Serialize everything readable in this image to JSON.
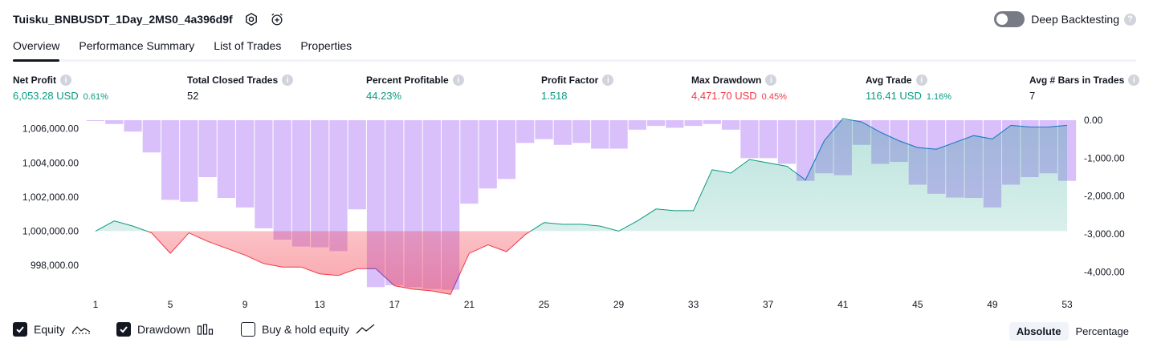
{
  "header": {
    "strategy_title": "Tuisku_BNBUSDT_1Day_2MS0_4a396d9f",
    "settings_icon": "gear-icon",
    "alert_icon": "alarm-clock-add-icon",
    "deep_backtesting_label": "Deep Backtesting",
    "deep_backtesting_enabled": false
  },
  "tabs": [
    {
      "label": "Overview",
      "active": true
    },
    {
      "label": "Performance Summary",
      "active": false
    },
    {
      "label": "List of Trades",
      "active": false
    },
    {
      "label": "Properties",
      "active": false
    }
  ],
  "metrics": [
    {
      "label": "Net Profit",
      "value": "6,053.28 USD",
      "pct": "0.61%",
      "color": "green"
    },
    {
      "label": "Total Closed Trades",
      "value": "52",
      "pct": "",
      "color": "dark"
    },
    {
      "label": "Percent Profitable",
      "value": "44.23%",
      "pct": "",
      "color": "green"
    },
    {
      "label": "Profit Factor",
      "value": "1.518",
      "pct": "",
      "color": "green"
    },
    {
      "label": "Max Drawdown",
      "value": "4,471.70 USD",
      "pct": "0.45%",
      "color": "red"
    },
    {
      "label": "Avg Trade",
      "value": "116.41 USD",
      "pct": "1.16%",
      "color": "green"
    },
    {
      "label": "Avg # Bars in Trades",
      "value": "7",
      "pct": "",
      "color": "dark"
    }
  ],
  "chart_data": {
    "type": "area",
    "x_ticks": [
      "1",
      "5",
      "9",
      "13",
      "17",
      "21",
      "25",
      "29",
      "33",
      "37",
      "41",
      "45",
      "49",
      "53"
    ],
    "y_left_ticks": [
      "1,006,000.00",
      "1,004,000.00",
      "1,002,000.00",
      "1,000,000.00",
      "998,000.00"
    ],
    "y_right_ticks": [
      "0.00",
      "-1,000.00",
      "-2,000.00",
      "-3,000.00",
      "-4,000.00"
    ],
    "y_left_range": [
      996500,
      1006500
    ],
    "y_right_range": [
      -4500,
      0
    ],
    "baseline": 1000000,
    "series": [
      {
        "name": "Equity",
        "x": [
          1,
          2,
          3,
          4,
          5,
          6,
          7,
          8,
          9,
          10,
          11,
          12,
          13,
          14,
          15,
          16,
          17,
          18,
          19,
          20,
          21,
          22,
          23,
          24,
          25,
          26,
          27,
          28,
          29,
          30,
          31,
          32,
          33,
          34,
          35,
          36,
          37,
          38,
          39,
          40,
          41,
          42,
          43,
          44,
          45,
          46,
          47,
          48,
          49,
          50,
          51,
          52,
          53
        ],
        "values": [
          1000000,
          1000600,
          1000300,
          999900,
          998700,
          999900,
          999400,
          999000,
          998600,
          998100,
          997900,
          997900,
          997500,
          997400,
          997800,
          997800,
          996800,
          996600,
          996500,
          996300,
          998700,
          999200,
          998800,
          999800,
          1000500,
          1000400,
          1000400,
          1000300,
          1000000,
          1000600,
          1001300,
          1001200,
          1001200,
          1003600,
          1003400,
          1004200,
          1004000,
          1003800,
          1003000,
          1005300,
          1006600,
          1006400,
          1005800,
          1005300,
          1004900,
          1004800,
          1005200,
          1005600,
          1005400,
          1006200,
          1006100,
          1006100,
          1006200
        ]
      },
      {
        "name": "Drawdown",
        "x": [
          1,
          2,
          3,
          4,
          5,
          6,
          7,
          8,
          9,
          10,
          11,
          12,
          13,
          14,
          15,
          16,
          17,
          18,
          19,
          20,
          21,
          22,
          23,
          24,
          25,
          26,
          27,
          28,
          29,
          30,
          31,
          32,
          33,
          34,
          35,
          36,
          37,
          38,
          39,
          40,
          41,
          42,
          43,
          44,
          45,
          46,
          47,
          48,
          49,
          50,
          51,
          52,
          53
        ],
        "values": [
          -20,
          -100,
          -300,
          -850,
          -2100,
          -2150,
          -1500,
          -2050,
          -2300,
          -2850,
          -3150,
          -3330,
          -3350,
          -3450,
          -2350,
          -4400,
          -4350,
          -4400,
          -4450,
          -4471,
          -2200,
          -1800,
          -1550,
          -600,
          -500,
          -650,
          -600,
          -750,
          -750,
          -250,
          -150,
          -200,
          -150,
          -100,
          -250,
          -1000,
          -1000,
          -1150,
          -1600,
          -1400,
          -1450,
          -650,
          -1150,
          -1100,
          -1700,
          -1940,
          -2040,
          -2050,
          -2300,
          -1700,
          -1500,
          -1400,
          -1600
        ]
      }
    ]
  },
  "footer": {
    "equity_label": "Equity",
    "equity_checked": true,
    "drawdown_label": "Drawdown",
    "drawdown_checked": true,
    "buyhold_label": "Buy & hold equity",
    "buyhold_checked": false,
    "absolute_label": "Absolute",
    "percentage_label": "Percentage",
    "active_mode": "Absolute"
  },
  "colors": {
    "green": "#089981",
    "red": "#f23645",
    "drawdown_bar": "#d9c0fb",
    "equity_fill": "#d5eee9",
    "loss_fill": "#f9c8cc"
  }
}
